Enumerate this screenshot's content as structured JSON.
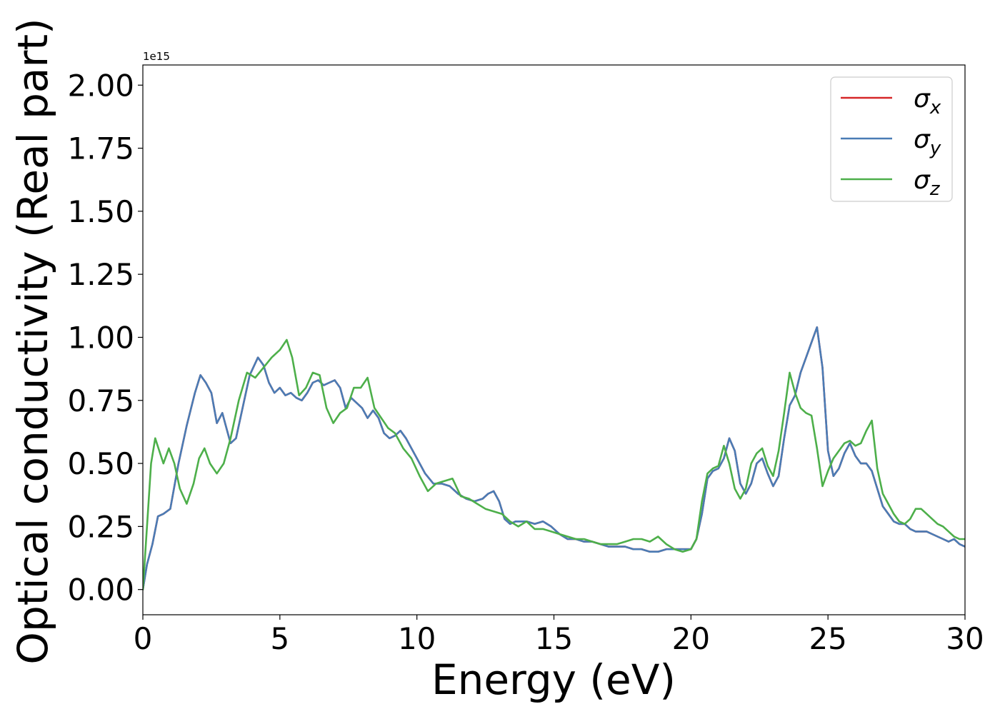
{
  "chart_data": {
    "type": "line",
    "title": "",
    "xlabel": "Energy (eV)",
    "ylabel": "Optical conductivity (Real part)",
    "y_scale_label": "1e15",
    "xlim": [
      0,
      30
    ],
    "ylim": [
      -0.1,
      2.08
    ],
    "xticks": [
      0,
      5,
      10,
      15,
      20,
      25,
      30
    ],
    "yticks": [
      0.0,
      0.25,
      0.5,
      0.75,
      1.0,
      1.25,
      1.5,
      1.75,
      2.0
    ],
    "ytick_labels": [
      "0.00",
      "0.25",
      "0.50",
      "0.75",
      "1.00",
      "1.25",
      "1.50",
      "1.75",
      "2.00"
    ],
    "grid": false,
    "legend_position": "top-right",
    "series": [
      {
        "name": "σ",
        "subscript": "x",
        "color": "#d62728",
        "x": [
          0,
          0.15,
          0.35,
          0.55,
          0.75,
          1.0,
          1.3,
          1.6,
          1.9,
          2.1,
          2.3,
          2.5,
          2.7,
          2.9,
          3.0,
          3.2,
          3.4,
          3.6,
          3.9,
          4.2,
          4.4,
          4.6,
          4.8,
          5.0,
          5.2,
          5.4,
          5.6,
          5.8,
          6.0,
          6.2,
          6.4,
          6.6,
          6.8,
          7.0,
          7.2,
          7.4,
          7.6,
          7.8,
          8.0,
          8.2,
          8.4,
          8.6,
          8.8,
          9.0,
          9.2,
          9.4,
          9.6,
          9.8,
          10.0,
          10.3,
          10.6,
          10.9,
          11.2,
          11.5,
          11.8,
          12.1,
          12.4,
          12.6,
          12.8,
          13.0,
          13.2,
          13.4,
          13.6,
          13.8,
          14.0,
          14.3,
          14.6,
          14.9,
          15.2,
          15.5,
          15.8,
          16.1,
          16.4,
          16.7,
          17.0,
          17.3,
          17.6,
          17.9,
          18.2,
          18.5,
          18.8,
          19.1,
          19.4,
          19.7,
          20.0,
          20.2,
          20.4,
          20.6,
          20.8,
          21.0,
          21.2,
          21.4,
          21.6,
          21.8,
          22.0,
          22.2,
          22.4,
          22.6,
          22.8,
          23.0,
          23.2,
          23.4,
          23.6,
          23.8,
          24.0,
          24.2,
          24.4,
          24.6,
          24.8,
          25.0,
          25.2,
          25.4,
          25.6,
          25.8,
          26.0,
          26.2,
          26.4,
          26.6,
          26.8,
          27.0,
          27.2,
          27.4,
          27.6,
          27.8,
          28.0,
          28.2,
          28.4,
          28.6,
          28.8,
          29.0,
          29.2,
          29.4,
          29.6,
          29.8,
          30.0
        ],
        "y": [
          0.0,
          0.1,
          0.18,
          0.29,
          0.3,
          0.32,
          0.5,
          0.65,
          0.78,
          0.85,
          0.82,
          0.78,
          0.66,
          0.7,
          0.66,
          0.58,
          0.6,
          0.7,
          0.85,
          0.92,
          0.89,
          0.82,
          0.78,
          0.8,
          0.77,
          0.78,
          0.76,
          0.75,
          0.78,
          0.82,
          0.83,
          0.81,
          0.82,
          0.83,
          0.8,
          0.72,
          0.76,
          0.74,
          0.72,
          0.68,
          0.71,
          0.68,
          0.62,
          0.6,
          0.61,
          0.63,
          0.6,
          0.56,
          0.52,
          0.46,
          0.42,
          0.42,
          0.41,
          0.38,
          0.36,
          0.35,
          0.36,
          0.38,
          0.39,
          0.35,
          0.28,
          0.26,
          0.27,
          0.27,
          0.27,
          0.26,
          0.27,
          0.25,
          0.22,
          0.2,
          0.2,
          0.19,
          0.19,
          0.18,
          0.17,
          0.17,
          0.17,
          0.16,
          0.16,
          0.15,
          0.15,
          0.16,
          0.16,
          0.16,
          0.16,
          0.2,
          0.3,
          0.44,
          0.47,
          0.48,
          0.52,
          0.6,
          0.55,
          0.42,
          0.38,
          0.42,
          0.5,
          0.52,
          0.46,
          0.41,
          0.45,
          0.6,
          0.73,
          0.77,
          0.86,
          0.92,
          0.98,
          1.04,
          0.88,
          0.55,
          0.45,
          0.48,
          0.54,
          0.58,
          0.53,
          0.5,
          0.5,
          0.47,
          0.4,
          0.33,
          0.3,
          0.27,
          0.26,
          0.26,
          0.24,
          0.23,
          0.23,
          0.23,
          0.22,
          0.21,
          0.2,
          0.19,
          0.2,
          0.18,
          0.17
        ]
      },
      {
        "name": "σ",
        "subscript": "y",
        "color": "#4a7cb5",
        "x": [
          0,
          0.15,
          0.35,
          0.55,
          0.75,
          1.0,
          1.3,
          1.6,
          1.9,
          2.1,
          2.3,
          2.5,
          2.7,
          2.9,
          3.0,
          3.2,
          3.4,
          3.6,
          3.9,
          4.2,
          4.4,
          4.6,
          4.8,
          5.0,
          5.2,
          5.4,
          5.6,
          5.8,
          6.0,
          6.2,
          6.4,
          6.6,
          6.8,
          7.0,
          7.2,
          7.4,
          7.6,
          7.8,
          8.0,
          8.2,
          8.4,
          8.6,
          8.8,
          9.0,
          9.2,
          9.4,
          9.6,
          9.8,
          10.0,
          10.3,
          10.6,
          10.9,
          11.2,
          11.5,
          11.8,
          12.1,
          12.4,
          12.6,
          12.8,
          13.0,
          13.2,
          13.4,
          13.6,
          13.8,
          14.0,
          14.3,
          14.6,
          14.9,
          15.2,
          15.5,
          15.8,
          16.1,
          16.4,
          16.7,
          17.0,
          17.3,
          17.6,
          17.9,
          18.2,
          18.5,
          18.8,
          19.1,
          19.4,
          19.7,
          20.0,
          20.2,
          20.4,
          20.6,
          20.8,
          21.0,
          21.2,
          21.4,
          21.6,
          21.8,
          22.0,
          22.2,
          22.4,
          22.6,
          22.8,
          23.0,
          23.2,
          23.4,
          23.6,
          23.8,
          24.0,
          24.2,
          24.4,
          24.6,
          24.8,
          25.0,
          25.2,
          25.4,
          25.6,
          25.8,
          26.0,
          26.2,
          26.4,
          26.6,
          26.8,
          27.0,
          27.2,
          27.4,
          27.6,
          27.8,
          28.0,
          28.2,
          28.4,
          28.6,
          28.8,
          29.0,
          29.2,
          29.4,
          29.6,
          29.8,
          30.0
        ],
        "y": [
          0.0,
          0.1,
          0.18,
          0.29,
          0.3,
          0.32,
          0.5,
          0.65,
          0.78,
          0.85,
          0.82,
          0.78,
          0.66,
          0.7,
          0.66,
          0.58,
          0.6,
          0.7,
          0.85,
          0.92,
          0.89,
          0.82,
          0.78,
          0.8,
          0.77,
          0.78,
          0.76,
          0.75,
          0.78,
          0.82,
          0.83,
          0.81,
          0.82,
          0.83,
          0.8,
          0.72,
          0.76,
          0.74,
          0.72,
          0.68,
          0.71,
          0.68,
          0.62,
          0.6,
          0.61,
          0.63,
          0.6,
          0.56,
          0.52,
          0.46,
          0.42,
          0.42,
          0.41,
          0.38,
          0.36,
          0.35,
          0.36,
          0.38,
          0.39,
          0.35,
          0.28,
          0.26,
          0.27,
          0.27,
          0.27,
          0.26,
          0.27,
          0.25,
          0.22,
          0.2,
          0.2,
          0.19,
          0.19,
          0.18,
          0.17,
          0.17,
          0.17,
          0.16,
          0.16,
          0.15,
          0.15,
          0.16,
          0.16,
          0.16,
          0.16,
          0.2,
          0.3,
          0.44,
          0.47,
          0.48,
          0.52,
          0.6,
          0.55,
          0.42,
          0.38,
          0.42,
          0.5,
          0.52,
          0.46,
          0.41,
          0.45,
          0.6,
          0.73,
          0.77,
          0.86,
          0.92,
          0.98,
          1.04,
          0.88,
          0.55,
          0.45,
          0.48,
          0.54,
          0.58,
          0.53,
          0.5,
          0.5,
          0.47,
          0.4,
          0.33,
          0.3,
          0.27,
          0.26,
          0.26,
          0.24,
          0.23,
          0.23,
          0.23,
          0.22,
          0.21,
          0.2,
          0.19,
          0.2,
          0.18,
          0.17
        ]
      },
      {
        "name": "σ",
        "subscript": "z",
        "color": "#4daf4a",
        "x": [
          0,
          0.15,
          0.3,
          0.45,
          0.6,
          0.75,
          0.95,
          1.15,
          1.35,
          1.6,
          1.85,
          2.05,
          2.25,
          2.45,
          2.7,
          2.95,
          3.2,
          3.5,
          3.8,
          4.1,
          4.4,
          4.7,
          5.0,
          5.25,
          5.45,
          5.7,
          5.95,
          6.2,
          6.45,
          6.7,
          6.95,
          7.2,
          7.45,
          7.7,
          7.95,
          8.2,
          8.45,
          8.7,
          8.95,
          9.2,
          9.5,
          9.8,
          10.1,
          10.4,
          10.7,
          11.0,
          11.3,
          11.6,
          11.9,
          12.2,
          12.5,
          12.8,
          13.1,
          13.4,
          13.7,
          14.0,
          14.3,
          14.6,
          14.9,
          15.2,
          15.5,
          15.8,
          16.1,
          16.4,
          16.7,
          17.0,
          17.3,
          17.6,
          17.9,
          18.2,
          18.5,
          18.8,
          19.1,
          19.4,
          19.7,
          20.0,
          20.2,
          20.4,
          20.6,
          20.8,
          21.0,
          21.2,
          21.4,
          21.6,
          21.8,
          22.0,
          22.2,
          22.4,
          22.6,
          22.8,
          23.0,
          23.2,
          23.4,
          23.6,
          23.8,
          24.0,
          24.2,
          24.4,
          24.6,
          24.8,
          25.0,
          25.2,
          25.4,
          25.6,
          25.8,
          26.0,
          26.2,
          26.4,
          26.6,
          26.8,
          27.0,
          27.2,
          27.4,
          27.6,
          27.8,
          28.0,
          28.2,
          28.4,
          28.6,
          28.8,
          29.0,
          29.2,
          29.4,
          29.6,
          29.8,
          30.0
        ],
        "y": [
          0.0,
          0.25,
          0.5,
          0.6,
          0.55,
          0.5,
          0.56,
          0.5,
          0.4,
          0.34,
          0.42,
          0.52,
          0.56,
          0.5,
          0.46,
          0.5,
          0.6,
          0.75,
          0.86,
          0.84,
          0.88,
          0.92,
          0.95,
          0.99,
          0.92,
          0.77,
          0.8,
          0.86,
          0.85,
          0.72,
          0.66,
          0.7,
          0.72,
          0.8,
          0.8,
          0.84,
          0.72,
          0.68,
          0.64,
          0.62,
          0.56,
          0.52,
          0.45,
          0.39,
          0.42,
          0.43,
          0.44,
          0.37,
          0.36,
          0.34,
          0.32,
          0.31,
          0.3,
          0.27,
          0.25,
          0.27,
          0.24,
          0.24,
          0.23,
          0.22,
          0.21,
          0.2,
          0.2,
          0.19,
          0.18,
          0.18,
          0.18,
          0.19,
          0.2,
          0.2,
          0.19,
          0.21,
          0.18,
          0.16,
          0.15,
          0.16,
          0.2,
          0.35,
          0.46,
          0.48,
          0.49,
          0.57,
          0.5,
          0.4,
          0.36,
          0.4,
          0.5,
          0.54,
          0.56,
          0.49,
          0.45,
          0.55,
          0.7,
          0.86,
          0.78,
          0.72,
          0.7,
          0.69,
          0.56,
          0.41,
          0.47,
          0.52,
          0.55,
          0.58,
          0.59,
          0.57,
          0.58,
          0.63,
          0.67,
          0.48,
          0.38,
          0.34,
          0.3,
          0.27,
          0.26,
          0.28,
          0.32,
          0.32,
          0.3,
          0.28,
          0.26,
          0.25,
          0.23,
          0.21,
          0.2,
          0.2
        ]
      }
    ]
  }
}
